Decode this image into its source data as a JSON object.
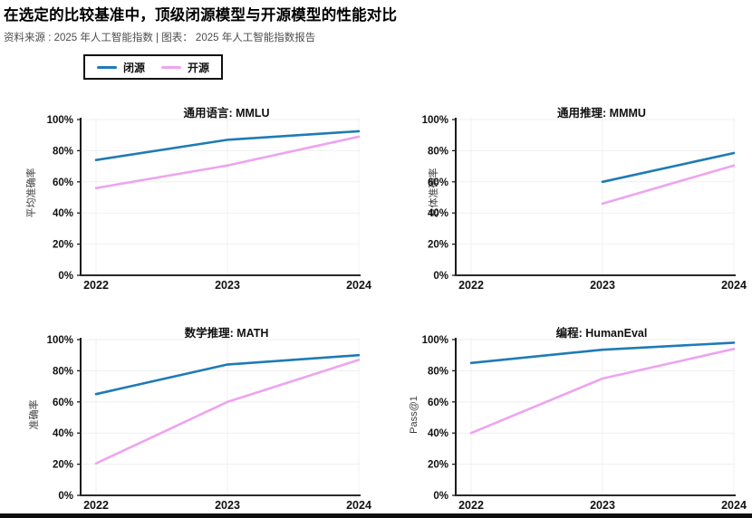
{
  "header": {
    "title": "在选定的比较基准中，顶级闭源模型与开源模型的性能对比",
    "subtitle": "资料来源 : 2025 年人工智能指数 | 图表： 2025 年人工智能指数报告"
  },
  "legend": {
    "items": [
      {
        "label": "闭源",
        "color": "#1f7bb6"
      },
      {
        "label": "开源",
        "color": "#eda4f0"
      }
    ]
  },
  "chart_data": [
    {
      "type": "line",
      "title": "通用语言: MMLU",
      "ylabel": "平均准确率",
      "x_categories": [
        "2022",
        "2023",
        "2024"
      ],
      "y_tick_values": [
        0,
        20,
        40,
        60,
        80,
        100
      ],
      "y_tick_labels": [
        "0%",
        "20%",
        "40%",
        "60%",
        "80%",
        "100%"
      ],
      "ylim": [
        0,
        100
      ],
      "grid": true,
      "series": [
        {
          "name": "闭源",
          "color": "#1f7bb6",
          "values": [
            74,
            87,
            92.5
          ]
        },
        {
          "name": "开源",
          "color": "#eda4f0",
          "values": [
            56,
            70.5,
            89
          ]
        }
      ]
    },
    {
      "type": "line",
      "title": "通用推理: MMMU",
      "ylabel": "总体准确率",
      "x_categories": [
        "2022",
        "2023",
        "2024"
      ],
      "y_tick_values": [
        0,
        20,
        40,
        60,
        80,
        100
      ],
      "y_tick_labels": [
        "0%",
        "20%",
        "40%",
        "60%",
        "80%",
        "100%"
      ],
      "ylim": [
        0,
        100
      ],
      "grid": true,
      "series": [
        {
          "name": "闭源",
          "color": "#1f7bb6",
          "values": [
            null,
            60,
            78.5
          ]
        },
        {
          "name": "开源",
          "color": "#eda4f0",
          "values": [
            null,
            46,
            70.5
          ]
        }
      ]
    },
    {
      "type": "line",
      "title": "数学推理: MATH",
      "ylabel": "准确率",
      "x_categories": [
        "2022",
        "2023",
        "2024"
      ],
      "y_tick_values": [
        0,
        20,
        40,
        60,
        80,
        100
      ],
      "y_tick_labels": [
        "0%",
        "20%",
        "40%",
        "60%",
        "80%",
        "100%"
      ],
      "ylim": [
        0,
        100
      ],
      "grid": true,
      "series": [
        {
          "name": "闭源",
          "color": "#1f7bb6",
          "values": [
            65,
            84,
            90
          ]
        },
        {
          "name": "开源",
          "color": "#eda4f0",
          "values": [
            20.5,
            60,
            87
          ]
        }
      ]
    },
    {
      "type": "line",
      "title": "编程: HumanEval",
      "ylabel": "Pass@1",
      "x_categories": [
        "2022",
        "2023",
        "2024"
      ],
      "y_tick_values": [
        0,
        20,
        40,
        60,
        80,
        100
      ],
      "y_tick_labels": [
        "0%",
        "20%",
        "40%",
        "60%",
        "80%",
        "100%"
      ],
      "ylim": [
        0,
        100
      ],
      "grid": true,
      "series": [
        {
          "name": "闭源",
          "color": "#1f7bb6",
          "values": [
            85,
            93.5,
            98
          ]
        },
        {
          "name": "开源",
          "color": "#eda4f0",
          "values": [
            40,
            75,
            94
          ]
        }
      ]
    }
  ]
}
